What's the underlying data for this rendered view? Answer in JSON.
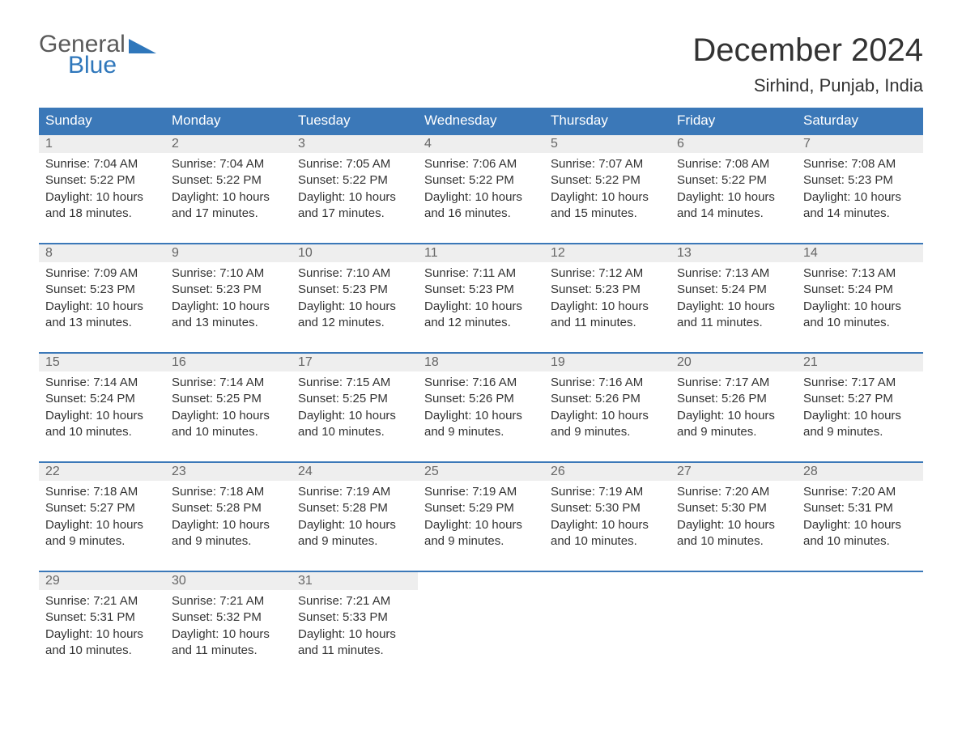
{
  "logo": {
    "text1": "General",
    "text2": "Blue",
    "accent_color": "#2f77bb",
    "gray": "#5a5a5a"
  },
  "title": "December 2024",
  "location": "Sirhind, Punjab, India",
  "header_bg": "#3b78b8",
  "daynum_bg": "#eeeeee",
  "border_color": "#3b78b8",
  "text_color": "#333333",
  "days_of_week": [
    "Sunday",
    "Monday",
    "Tuesday",
    "Wednesday",
    "Thursday",
    "Friday",
    "Saturday"
  ],
  "weeks": [
    [
      {
        "n": "1",
        "sunrise": "7:04 AM",
        "sunset": "5:22 PM",
        "dl": "10 hours and 18 minutes."
      },
      {
        "n": "2",
        "sunrise": "7:04 AM",
        "sunset": "5:22 PM",
        "dl": "10 hours and 17 minutes."
      },
      {
        "n": "3",
        "sunrise": "7:05 AM",
        "sunset": "5:22 PM",
        "dl": "10 hours and 17 minutes."
      },
      {
        "n": "4",
        "sunrise": "7:06 AM",
        "sunset": "5:22 PM",
        "dl": "10 hours and 16 minutes."
      },
      {
        "n": "5",
        "sunrise": "7:07 AM",
        "sunset": "5:22 PM",
        "dl": "10 hours and 15 minutes."
      },
      {
        "n": "6",
        "sunrise": "7:08 AM",
        "sunset": "5:22 PM",
        "dl": "10 hours and 14 minutes."
      },
      {
        "n": "7",
        "sunrise": "7:08 AM",
        "sunset": "5:23 PM",
        "dl": "10 hours and 14 minutes."
      }
    ],
    [
      {
        "n": "8",
        "sunrise": "7:09 AM",
        "sunset": "5:23 PM",
        "dl": "10 hours and 13 minutes."
      },
      {
        "n": "9",
        "sunrise": "7:10 AM",
        "sunset": "5:23 PM",
        "dl": "10 hours and 13 minutes."
      },
      {
        "n": "10",
        "sunrise": "7:10 AM",
        "sunset": "5:23 PM",
        "dl": "10 hours and 12 minutes."
      },
      {
        "n": "11",
        "sunrise": "7:11 AM",
        "sunset": "5:23 PM",
        "dl": "10 hours and 12 minutes."
      },
      {
        "n": "12",
        "sunrise": "7:12 AM",
        "sunset": "5:23 PM",
        "dl": "10 hours and 11 minutes."
      },
      {
        "n": "13",
        "sunrise": "7:13 AM",
        "sunset": "5:24 PM",
        "dl": "10 hours and 11 minutes."
      },
      {
        "n": "14",
        "sunrise": "7:13 AM",
        "sunset": "5:24 PM",
        "dl": "10 hours and 10 minutes."
      }
    ],
    [
      {
        "n": "15",
        "sunrise": "7:14 AM",
        "sunset": "5:24 PM",
        "dl": "10 hours and 10 minutes."
      },
      {
        "n": "16",
        "sunrise": "7:14 AM",
        "sunset": "5:25 PM",
        "dl": "10 hours and 10 minutes."
      },
      {
        "n": "17",
        "sunrise": "7:15 AM",
        "sunset": "5:25 PM",
        "dl": "10 hours and 10 minutes."
      },
      {
        "n": "18",
        "sunrise": "7:16 AM",
        "sunset": "5:26 PM",
        "dl": "10 hours and 9 minutes."
      },
      {
        "n": "19",
        "sunrise": "7:16 AM",
        "sunset": "5:26 PM",
        "dl": "10 hours and 9 minutes."
      },
      {
        "n": "20",
        "sunrise": "7:17 AM",
        "sunset": "5:26 PM",
        "dl": "10 hours and 9 minutes."
      },
      {
        "n": "21",
        "sunrise": "7:17 AM",
        "sunset": "5:27 PM",
        "dl": "10 hours and 9 minutes."
      }
    ],
    [
      {
        "n": "22",
        "sunrise": "7:18 AM",
        "sunset": "5:27 PM",
        "dl": "10 hours and 9 minutes."
      },
      {
        "n": "23",
        "sunrise": "7:18 AM",
        "sunset": "5:28 PM",
        "dl": "10 hours and 9 minutes."
      },
      {
        "n": "24",
        "sunrise": "7:19 AM",
        "sunset": "5:28 PM",
        "dl": "10 hours and 9 minutes."
      },
      {
        "n": "25",
        "sunrise": "7:19 AM",
        "sunset": "5:29 PM",
        "dl": "10 hours and 9 minutes."
      },
      {
        "n": "26",
        "sunrise": "7:19 AM",
        "sunset": "5:30 PM",
        "dl": "10 hours and 10 minutes."
      },
      {
        "n": "27",
        "sunrise": "7:20 AM",
        "sunset": "5:30 PM",
        "dl": "10 hours and 10 minutes."
      },
      {
        "n": "28",
        "sunrise": "7:20 AM",
        "sunset": "5:31 PM",
        "dl": "10 hours and 10 minutes."
      }
    ],
    [
      {
        "n": "29",
        "sunrise": "7:21 AM",
        "sunset": "5:31 PM",
        "dl": "10 hours and 10 minutes."
      },
      {
        "n": "30",
        "sunrise": "7:21 AM",
        "sunset": "5:32 PM",
        "dl": "10 hours and 11 minutes."
      },
      {
        "n": "31",
        "sunrise": "7:21 AM",
        "sunset": "5:33 PM",
        "dl": "10 hours and 11 minutes."
      },
      null,
      null,
      null,
      null
    ]
  ],
  "labels": {
    "sunrise": "Sunrise: ",
    "sunset": "Sunset: ",
    "daylight": "Daylight: "
  }
}
